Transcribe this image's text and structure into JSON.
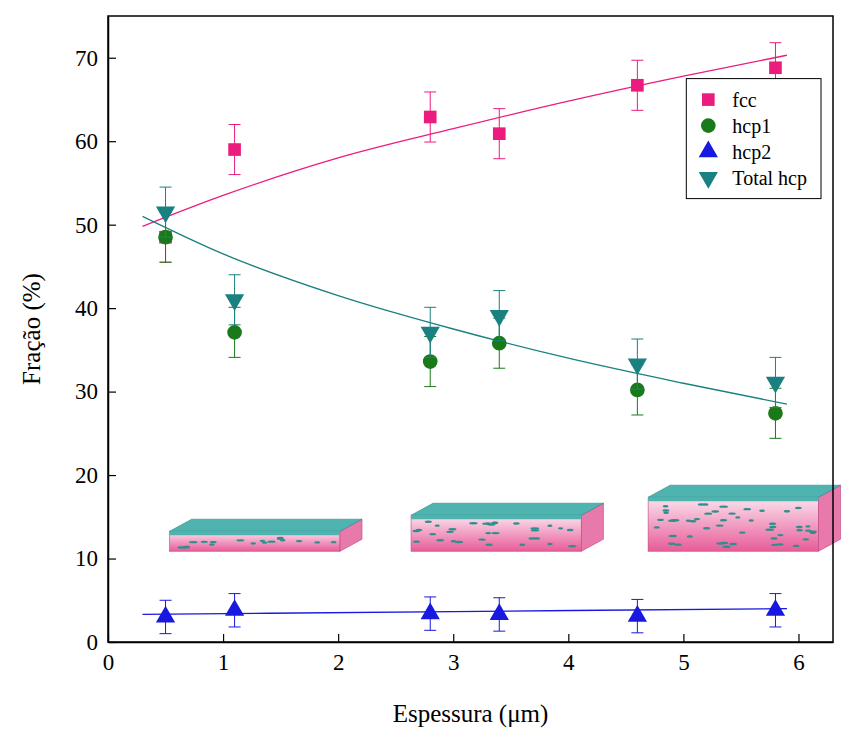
{
  "chart_data": {
    "type": "scatter",
    "x_label": "Espessura (μm)",
    "y_label": "Fração (%)",
    "x": [
      0.5,
      1.1,
      2.8,
      3.4,
      4.6,
      5.8
    ],
    "xlim": [
      0,
      6.3
    ],
    "xticks": [
      0,
      1,
      2,
      3,
      4,
      5,
      6
    ],
    "ylim": [
      0,
      75
    ],
    "yticks": [
      0,
      10,
      20,
      30,
      40,
      50,
      60,
      70
    ],
    "legend": "top-right",
    "series": [
      {
        "name": "fcc",
        "color": "#ec1c7e",
        "marker": "square",
        "values": [
          48.5,
          59.0,
          62.9,
          60.9,
          66.7,
          68.8
        ],
        "errors": [
          3,
          3,
          3,
          3,
          3,
          3
        ]
      },
      {
        "name": "hcp1",
        "color": "#1a7a1a",
        "marker": "circle",
        "values": [
          48.5,
          37.1,
          33.6,
          35.8,
          30.2,
          27.4
        ],
        "errors": [
          3,
          3,
          3,
          3,
          3,
          3
        ]
      },
      {
        "name": "hcp2",
        "color": "#1818e0",
        "marker": "triangle-up",
        "values": [
          3.0,
          3.8,
          3.4,
          3.3,
          3.1,
          3.8
        ],
        "errors": [
          2,
          2,
          2,
          2,
          2,
          2
        ]
      },
      {
        "name": "Total hcp",
        "color": "#1a8080",
        "marker": "triangle-down",
        "values": [
          51.5,
          41.0,
          37.1,
          39.1,
          33.3,
          31.1
        ],
        "errors": [
          3,
          3,
          3,
          3,
          3,
          3
        ]
      },
      {
        "type": "line",
        "color": "#ec1c7e",
        "x": [
          0.3,
          1,
          2,
          3,
          4,
          5,
          5.9
        ],
        "values": [
          49.8,
          53.5,
          58.0,
          61.5,
          64.8,
          67.8,
          70.3
        ]
      },
      {
        "type": "line",
        "color": "#1a8080",
        "x": [
          0.3,
          1,
          2,
          3,
          4,
          5,
          5.9
        ],
        "values": [
          51.0,
          46.5,
          41.5,
          37.5,
          34.0,
          31.0,
          28.5
        ]
      },
      {
        "type": "line",
        "color": "#1818e0",
        "x": [
          0.3,
          3,
          5.9
        ],
        "values": [
          3.3,
          3.65,
          4.0
        ]
      }
    ]
  }
}
